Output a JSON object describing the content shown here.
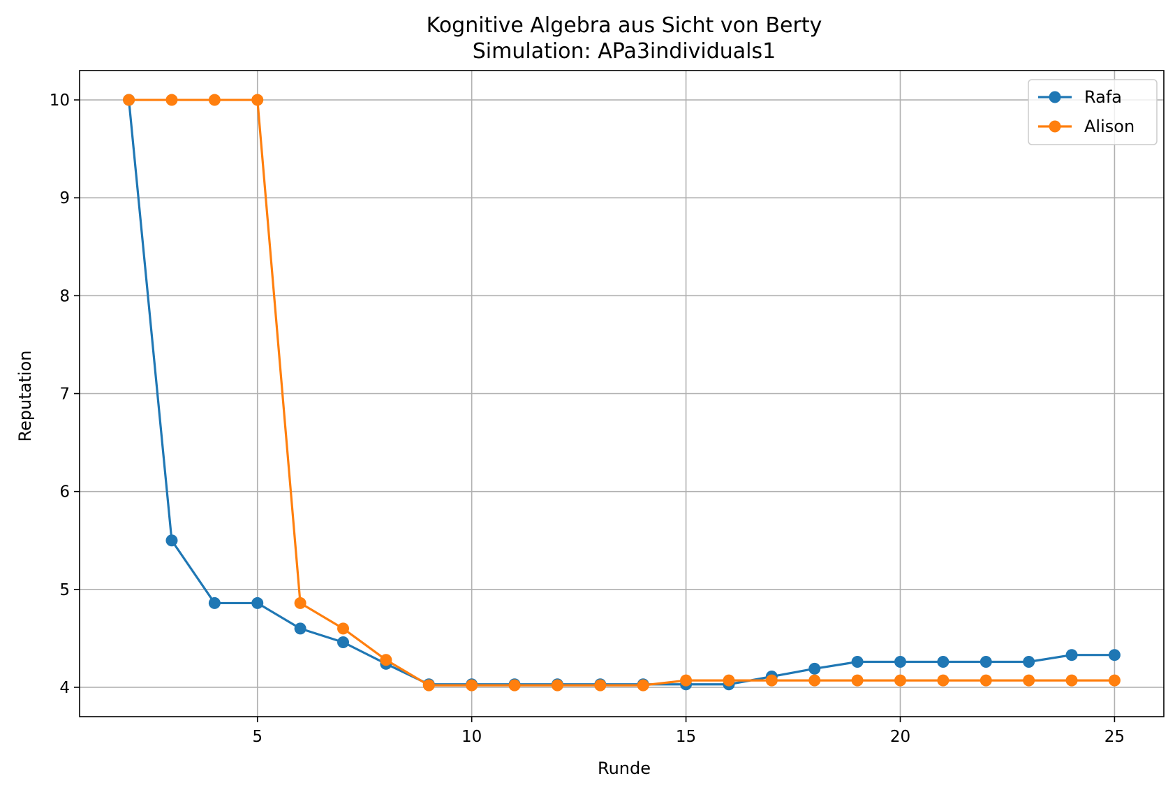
{
  "chart_data": {
    "type": "line",
    "title": "Kognitive Algebra aus Sicht von Berty",
    "subtitle": "Simulation: APa3individuals1",
    "xlabel": "Runde",
    "ylabel": "Reputation",
    "xlim": [
      0.85,
      26.15
    ],
    "ylim": [
      3.7,
      10.3
    ],
    "xticks": [
      5,
      10,
      15,
      20,
      25
    ],
    "yticks": [
      4,
      5,
      6,
      7,
      8,
      9,
      10
    ],
    "grid": true,
    "legend_position": "top-right",
    "x": [
      2,
      3,
      4,
      5,
      6,
      7,
      8,
      9,
      10,
      11,
      12,
      13,
      14,
      15,
      16,
      17,
      18,
      19,
      20,
      21,
      22,
      23,
      24,
      25
    ],
    "series": [
      {
        "name": "Rafa",
        "color": "#1f77b4",
        "values": [
          10.0,
          5.5,
          4.86,
          4.86,
          4.6,
          4.46,
          4.24,
          4.03,
          4.03,
          4.03,
          4.03,
          4.03,
          4.03,
          4.03,
          4.03,
          4.11,
          4.19,
          4.26,
          4.26,
          4.26,
          4.26,
          4.26,
          4.33,
          4.33
        ]
      },
      {
        "name": "Alison",
        "color": "#ff7f0e",
        "values": [
          10.0,
          10.0,
          10.0,
          10.0,
          4.86,
          4.6,
          4.28,
          4.02,
          4.02,
          4.02,
          4.02,
          4.02,
          4.02,
          4.07,
          4.07,
          4.07,
          4.07,
          4.07,
          4.07,
          4.07,
          4.07,
          4.07,
          4.07,
          4.07
        ]
      }
    ]
  }
}
